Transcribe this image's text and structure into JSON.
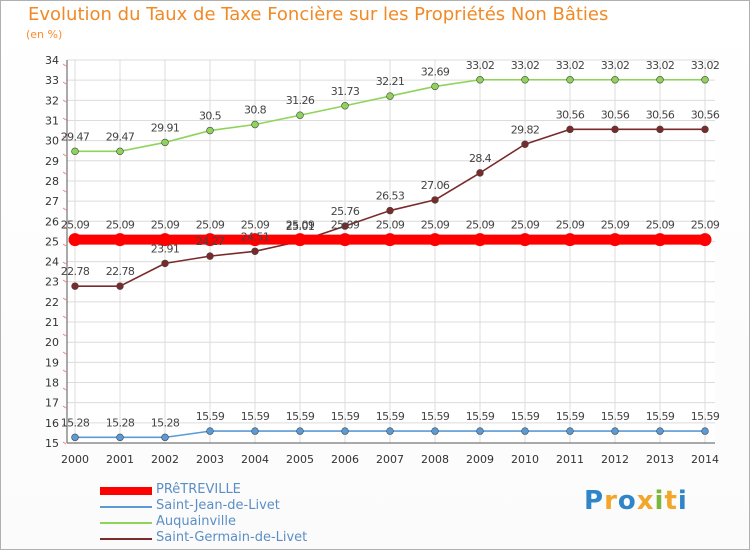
{
  "chart_data": {
    "type": "line",
    "title": "Evolution du Taux de Taxe Foncière sur les Propriétés Non Bâties",
    "ylabel": "(en %)",
    "xlabel": "",
    "x": [
      "2000",
      "2001",
      "2002",
      "2003",
      "2004",
      "2005",
      "2006",
      "2007",
      "2008",
      "2009",
      "2010",
      "2011",
      "2012",
      "2013",
      "2014"
    ],
    "ylim": [
      15,
      34
    ],
    "yticks": [
      "15",
      "16",
      "17",
      "18",
      "19",
      "20",
      "21",
      "22",
      "23",
      "24",
      "25",
      "26",
      "27",
      "28",
      "29",
      "30",
      "31",
      "32",
      "33",
      "34"
    ],
    "legend_position": "bottom-left",
    "series": [
      {
        "name": "PRêTREVILLE",
        "color": "#ff0000",
        "values": [
          25.09,
          25.09,
          25.09,
          25.09,
          25.09,
          25.09,
          25.09,
          25.09,
          25.09,
          25.09,
          25.09,
          25.09,
          25.09,
          25.09,
          25.09
        ],
        "labels": [
          "25.09",
          "25.09",
          "25.09",
          "25.09",
          "25.09",
          "25.09",
          "25.09",
          "25.09",
          "25.09",
          "25.09",
          "25.09",
          "25.09",
          "25.09",
          "25.09",
          "25.09"
        ]
      },
      {
        "name": "Saint-Jean-de-Livet",
        "color": "#5b9bd5",
        "values": [
          15.28,
          15.28,
          15.28,
          15.59,
          15.59,
          15.59,
          15.59,
          15.59,
          15.59,
          15.59,
          15.59,
          15.59,
          15.59,
          15.59,
          15.59
        ],
        "labels": [
          "15.28",
          "15.28",
          "15.28",
          "15.59",
          "15.59",
          "15.59",
          "15.59",
          "15.59",
          "15.59",
          "15.59",
          "15.59",
          "15.59",
          "15.59",
          "15.59",
          "15.59"
        ]
      },
      {
        "name": "Auquainville",
        "color": "#8fd45a",
        "values": [
          29.47,
          29.47,
          29.91,
          30.5,
          30.8,
          31.26,
          31.73,
          32.21,
          32.69,
          33.02,
          33.02,
          33.02,
          33.02,
          33.02,
          33.02
        ],
        "labels": [
          "29.47",
          "29.47",
          "29.91",
          "30.5",
          "30.8",
          "31.26",
          "31.73",
          "32.21",
          "32.69",
          "33.02",
          "33.02",
          "33.02",
          "33.02",
          "33.02",
          "33.02"
        ]
      },
      {
        "name": "Saint-Germain-de-Livet",
        "color": "#7a2a2a",
        "values": [
          22.78,
          22.78,
          23.91,
          24.27,
          24.51,
          25.01,
          25.76,
          26.53,
          27.06,
          28.4,
          29.82,
          30.56,
          30.56,
          30.56,
          30.56
        ],
        "labels": [
          "22.78",
          "22.78",
          "23.91",
          "24.27",
          "24.51",
          "25.01",
          "25.76",
          "26.53",
          "27.06",
          "28.4",
          "29.82",
          "30.56",
          "30.56",
          "30.56",
          "30.56"
        ]
      }
    ]
  },
  "brand": {
    "letters": [
      "P",
      "r",
      "o",
      "x",
      "i",
      "t",
      "i"
    ],
    "colors": [
      "#2e86c8",
      "#f2a62a",
      "#2e86c8",
      "#f2a62a",
      "#7ab83a",
      "#f2a62a",
      "#2e86c8"
    ]
  }
}
